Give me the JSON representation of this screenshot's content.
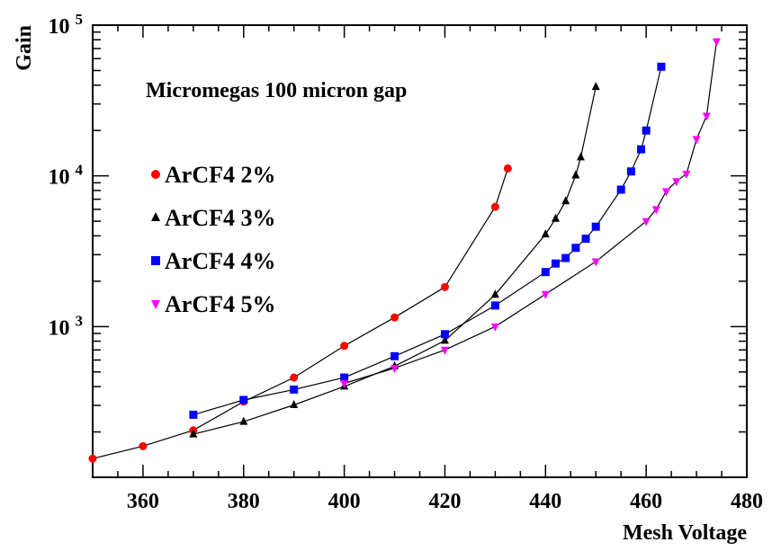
{
  "chart_data": {
    "type": "line",
    "title": "Micromegas 100 micron gap",
    "xlabel": "Mesh Voltage",
    "ylabel": "Gain",
    "xlim": [
      350,
      480
    ],
    "ylim": [
      100,
      100000
    ],
    "yscale": "log",
    "grid": false,
    "legend_position": "left",
    "x_ticks": [
      "360",
      "380",
      "400",
      "420",
      "440",
      "460",
      "480"
    ],
    "y_ticks": [
      {
        "base": "10",
        "exp": "3",
        "value": 1000
      },
      {
        "base": "10",
        "exp": "4",
        "value": 10000
      },
      {
        "base": "10",
        "exp": "5",
        "value": 100000
      }
    ],
    "series": [
      {
        "name": "ArCF4 2%",
        "color": "#ff0000",
        "marker": "circle",
        "x": [
          350,
          360,
          370,
          380,
          390,
          400,
          410,
          420,
          430,
          432.5
        ],
        "y": [
          133,
          161,
          205,
          318,
          459,
          745,
          1150,
          1830,
          6230,
          11200
        ]
      },
      {
        "name": "ArCF4 3%",
        "color": "#000000",
        "marker": "triangle-up",
        "x": [
          370,
          380,
          390,
          400,
          410,
          420,
          430,
          440,
          442,
          444,
          446,
          447,
          450
        ],
        "y": [
          193,
          234,
          302,
          401,
          546,
          808,
          1630,
          4100,
          5200,
          6800,
          10100,
          13300,
          39000
        ]
      },
      {
        "name": "ArCF4 4%",
        "color": "#0000ff",
        "marker": "square",
        "x": [
          370,
          380,
          390,
          400,
          410,
          420,
          430,
          440,
          442,
          444,
          446,
          448,
          450,
          455,
          457,
          459,
          460,
          463
        ],
        "y": [
          260,
          326,
          382,
          459,
          636,
          890,
          1380,
          2300,
          2620,
          2850,
          3330,
          3830,
          4600,
          8100,
          10700,
          15000,
          20000,
          53000
        ]
      },
      {
        "name": "ArCF4 5%",
        "color": "#ff00ff",
        "marker": "triangle-down",
        "x": [
          400,
          410,
          420,
          430,
          440,
          450,
          460,
          462,
          464,
          466,
          468,
          470,
          472,
          474
        ],
        "y": [
          420,
          530,
          700,
          1000,
          1640,
          2700,
          5000,
          6000,
          7900,
          9200,
          10300,
          17500,
          25000,
          78000
        ]
      }
    ]
  }
}
